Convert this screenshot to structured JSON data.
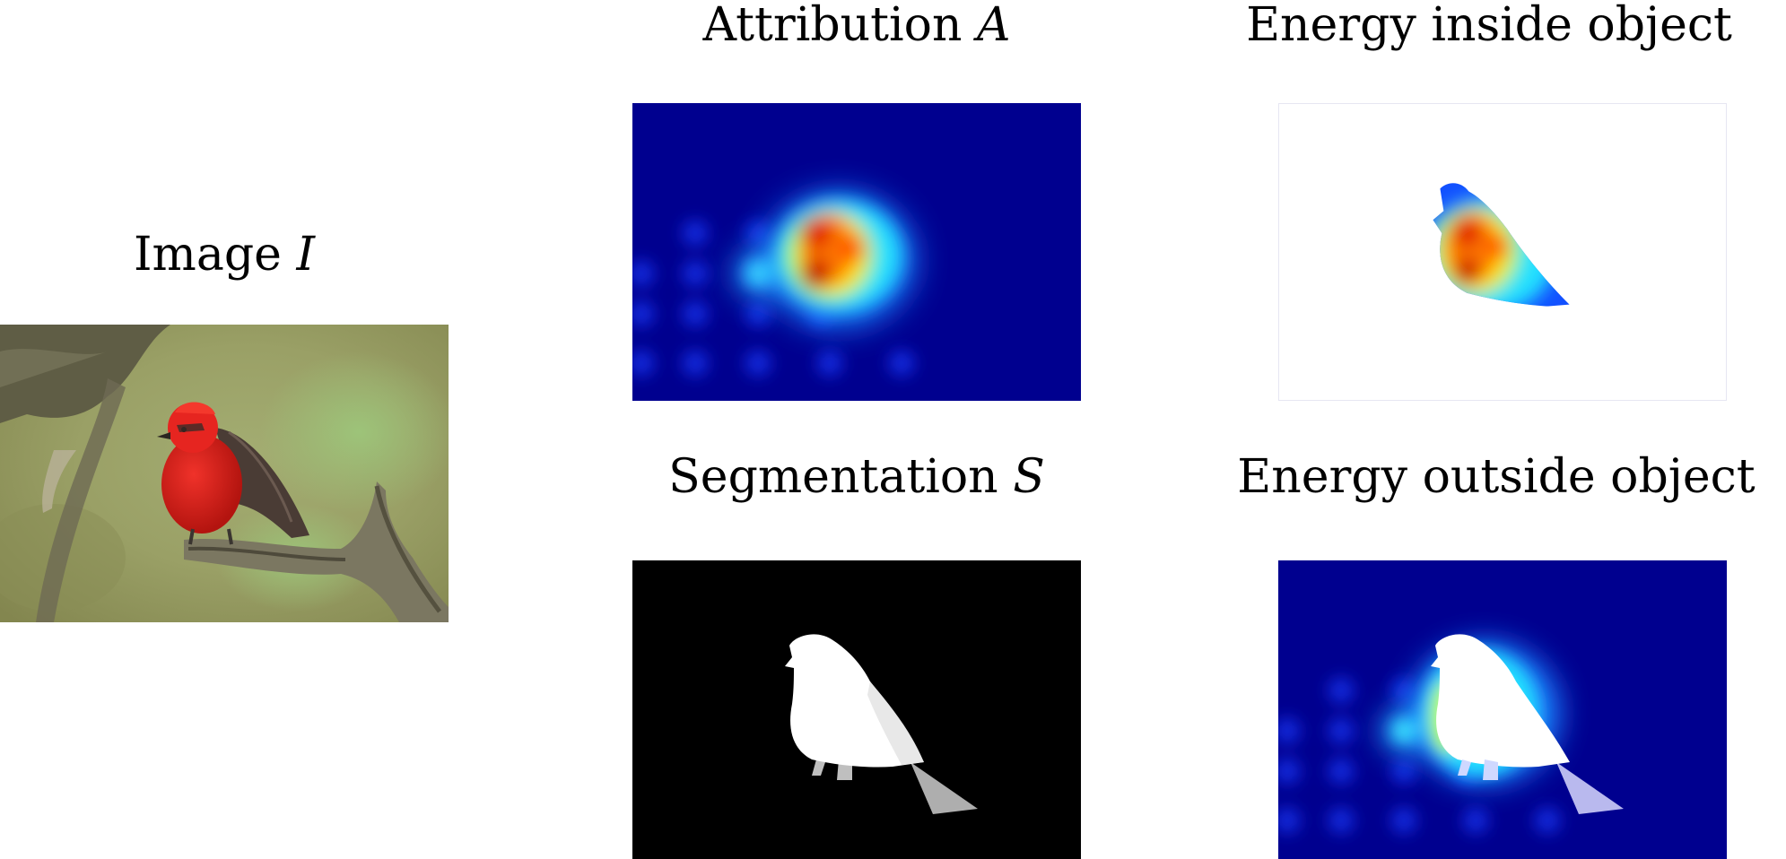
{
  "figure": {
    "image": {
      "title": "Image",
      "symbol": "I"
    },
    "attribution": {
      "title": "Attribution",
      "symbol": "A"
    },
    "segmentation": {
      "title": "Segmentation",
      "symbol": "S"
    },
    "energy_inside": {
      "title": "Energy inside object"
    },
    "energy_outside": {
      "title": "Energy outside object"
    }
  },
  "colors": {
    "heatmap_low": "#00008b",
    "heatmap_high": "#d00000",
    "mask_bg": "#000000",
    "mask_fg": "#ffffff",
    "bird_red": "#e0201e"
  }
}
